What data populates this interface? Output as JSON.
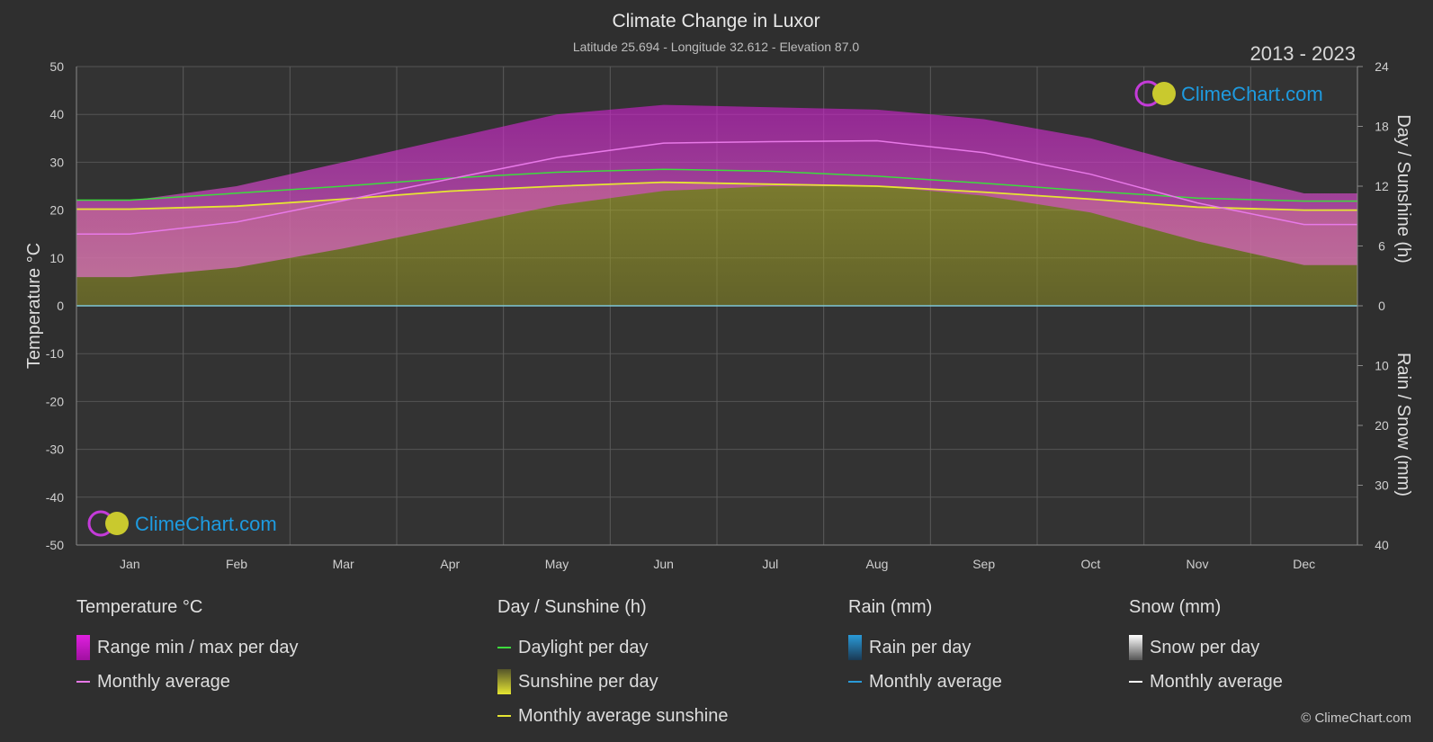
{
  "chart_data": {
    "type": "area",
    "title": "Climate Change in Luxor",
    "subtitle": "Latitude 25.694 - Longitude 32.612 - Elevation 87.0",
    "period": "2013 - 2023",
    "categories": [
      "Jan",
      "Feb",
      "Mar",
      "Apr",
      "May",
      "Jun",
      "Jul",
      "Aug",
      "Sep",
      "Oct",
      "Nov",
      "Dec"
    ],
    "y_left": {
      "label": "Temperature °C",
      "range": [
        -50,
        50
      ],
      "ticks": [
        "50",
        "40",
        "30",
        "20",
        "10",
        "0",
        "-10",
        "-20",
        "-30",
        "-40",
        "-50"
      ]
    },
    "y_right_top": {
      "label": "Day / Sunshine (h)",
      "range": [
        0,
        24
      ],
      "ticks": [
        "24",
        "18",
        "12",
        "6",
        "0"
      ]
    },
    "y_right_bottom": {
      "label": "Rain / Snow (mm)",
      "range": [
        0,
        40
      ],
      "ticks": [
        "10",
        "20",
        "30",
        "40"
      ]
    },
    "grid": true,
    "series": [
      {
        "name": "Temperature monthly average",
        "axis": "temperature",
        "color": "#e879e8",
        "values": [
          15.0,
          17.5,
          22.0,
          26.5,
          31.0,
          34.0,
          34.3,
          34.5,
          32.0,
          27.5,
          21.5,
          17.0
        ]
      },
      {
        "name": "Temperature daily max",
        "axis": "temperature",
        "color": "#c81ec8",
        "values": [
          22.0,
          25.0,
          30.0,
          35.0,
          40.0,
          42.0,
          41.5,
          41.0,
          39.0,
          35.0,
          29.0,
          23.5
        ]
      },
      {
        "name": "Temperature daily min",
        "axis": "temperature",
        "color": "#c81ec8",
        "values": [
          6.0,
          8.0,
          12.0,
          16.5,
          21.0,
          24.0,
          25.0,
          25.0,
          23.0,
          19.5,
          13.5,
          8.5
        ]
      },
      {
        "name": "Daylight per day",
        "axis": "sunshine",
        "color": "#3ddc3d",
        "values": [
          10.6,
          11.3,
          12.0,
          12.8,
          13.4,
          13.7,
          13.5,
          13.0,
          12.3,
          11.5,
          10.8,
          10.5
        ]
      },
      {
        "name": "Sunshine per day",
        "axis": "sunshine",
        "color": "#c8c832",
        "values": [
          9.7,
          10.0,
          10.7,
          11.5,
          12.0,
          12.4,
          12.2,
          12.0,
          11.4,
          10.7,
          9.9,
          9.6
        ]
      },
      {
        "name": "Monthly average sunshine",
        "axis": "sunshine",
        "color": "#e6e632",
        "values": [
          9.7,
          10.0,
          10.7,
          11.5,
          12.0,
          12.4,
          12.2,
          12.0,
          11.4,
          10.7,
          9.9,
          9.6
        ]
      },
      {
        "name": "Rain monthly average",
        "axis": "rain",
        "color": "#2a9ad8",
        "values": [
          0,
          0,
          0,
          0,
          0,
          0,
          0,
          0,
          0,
          0,
          0,
          0
        ]
      },
      {
        "name": "Snow monthly average",
        "axis": "snow",
        "color": "#ffffff",
        "values": [
          0,
          0,
          0,
          0,
          0,
          0,
          0,
          0,
          0,
          0,
          0,
          0
        ]
      }
    ]
  },
  "brand": {
    "name": "ClimeChart.com",
    "copyright": "© ClimeChart.com"
  },
  "legend": {
    "temperature": {
      "title": "Temperature °C",
      "range": "Range min / max per day",
      "avg": "Monthly average"
    },
    "sun": {
      "title": "Day / Sunshine (h)",
      "daylight": "Daylight per day",
      "sunshine": "Sunshine per day",
      "avg": "Monthly average sunshine"
    },
    "rain": {
      "title": "Rain (mm)",
      "per_day": "Rain per day",
      "avg": "Monthly average"
    },
    "snow": {
      "title": "Snow (mm)",
      "per_day": "Snow per day",
      "avg": "Monthly average"
    }
  },
  "colors": {
    "background": "#2f2f2f",
    "plot": "#333333",
    "grid": "#5a5a5a",
    "brand_text": "#1e9be0"
  }
}
